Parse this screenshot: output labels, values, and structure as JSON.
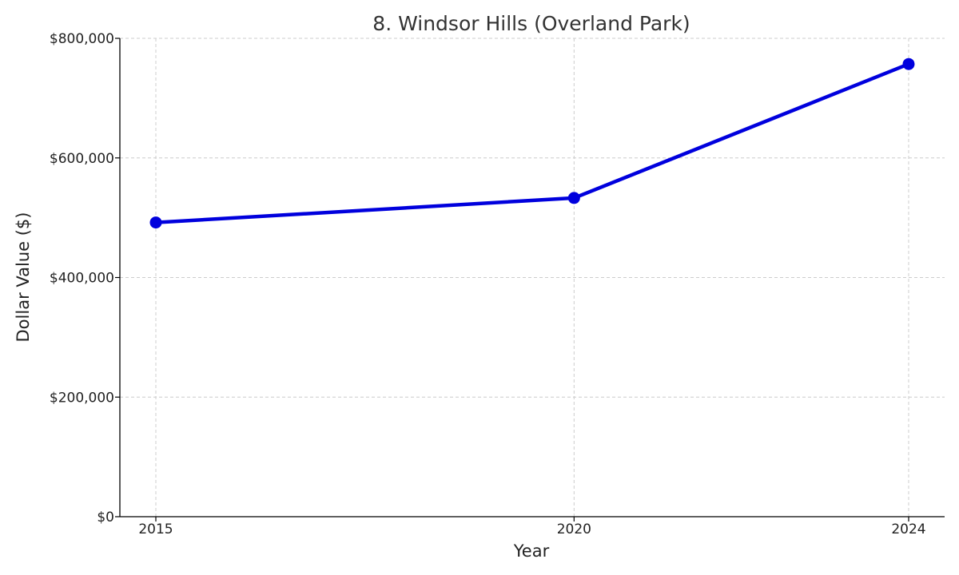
{
  "chart_data": {
    "type": "line",
    "title": "8. Windsor Hills (Overland Park)",
    "xlabel": "Year",
    "ylabel": "Dollar Value ($)",
    "x": [
      2015,
      2020,
      2024
    ],
    "x_tick_labels": [
      "2015",
      "2020",
      "2024"
    ],
    "series": [
      {
        "values": [
          492000,
          533000,
          757000
        ],
        "color": "#0000dd"
      }
    ],
    "ylim": [
      0,
      800000
    ],
    "y_ticks": [
      0,
      200000,
      400000,
      600000,
      800000
    ],
    "y_tick_labels": [
      "$0",
      "$200,000",
      "$400,000",
      "$600,000",
      "$800,000"
    ],
    "grid": true
  }
}
